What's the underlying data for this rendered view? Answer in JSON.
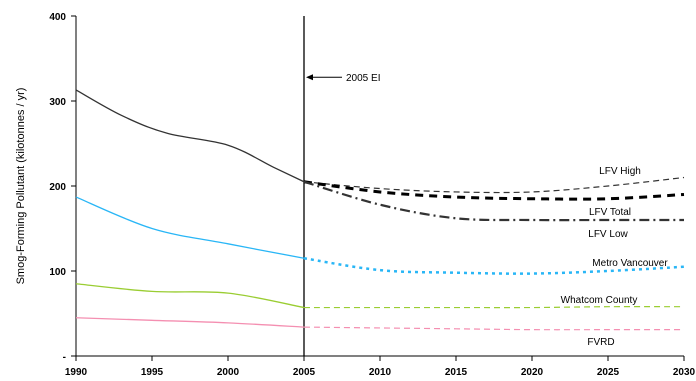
{
  "chart_data": {
    "type": "line",
    "ylabel": "Smog-Forming Pollutant (kilotonnes / yr)",
    "xlabel": "",
    "xlim": [
      1990,
      2030
    ],
    "ylim": [
      0,
      400
    ],
    "xticks": [
      "1990",
      "1995",
      "2000",
      "2005",
      "2010",
      "2015",
      "2020",
      "2025",
      "2030"
    ],
    "yticks": [
      "-",
      "100",
      "200",
      "300",
      "400"
    ],
    "grid": false,
    "annotation": {
      "text": "2005 EI",
      "x": 2005
    },
    "series": [
      {
        "name": "",
        "color": "#333333",
        "style": "solid",
        "x": [
          1990,
          1993,
          1996,
          2000,
          2003,
          2005
        ],
        "y": [
          313,
          283,
          262,
          248,
          222,
          205
        ]
      },
      {
        "name": "LFV High",
        "color": "#333333",
        "style": "dashed",
        "x": [
          2005,
          2010,
          2015,
          2020,
          2025,
          2030
        ],
        "y": [
          205,
          197,
          193,
          193,
          200,
          210
        ]
      },
      {
        "name": "LFV Total",
        "color": "#000000",
        "style": "dash-heavy",
        "x": [
          2005,
          2010,
          2015,
          2020,
          2025,
          2030
        ],
        "y": [
          205,
          193,
          187,
          185,
          185,
          190
        ]
      },
      {
        "name": "LFV Low",
        "color": "#333333",
        "style": "dashdot",
        "x": [
          2005,
          2010,
          2015,
          2020,
          2025,
          2030
        ],
        "y": [
          205,
          178,
          162,
          160,
          160,
          160
        ]
      },
      {
        "name": "",
        "color": "#29b6f6",
        "style": "solid",
        "x": [
          1990,
          1995,
          2000,
          2005
        ],
        "y": [
          187,
          150,
          132,
          115
        ]
      },
      {
        "name": "Metro Vancouver",
        "color": "#29b6f6",
        "style": "dotted",
        "x": [
          2005,
          2010,
          2015,
          2020,
          2025,
          2030
        ],
        "y": [
          115,
          101,
          98,
          97,
          100,
          105
        ]
      },
      {
        "name": "",
        "color": "#9acd32",
        "style": "solid",
        "x": [
          1990,
          1995,
          2000,
          2005
        ],
        "y": [
          85,
          76,
          74,
          57
        ]
      },
      {
        "name": "Whatcom County",
        "color": "#9acd32",
        "style": "dashed",
        "x": [
          2005,
          2010,
          2015,
          2020,
          2025,
          2030
        ],
        "y": [
          57,
          57,
          57,
          57,
          58,
          58
        ]
      },
      {
        "name": "",
        "color": "#f48fb1",
        "style": "solid",
        "x": [
          1990,
          1995,
          2000,
          2005
        ],
        "y": [
          45,
          42,
          39,
          34
        ]
      },
      {
        "name": "FVRD",
        "color": "#f48fb1",
        "style": "dashed",
        "x": [
          2005,
          2010,
          2015,
          2020,
          2025,
          2030
        ],
        "y": [
          34,
          33,
          32,
          31,
          31,
          31
        ]
      }
    ],
    "labels": [
      {
        "text": "LFV High",
        "series": 1
      },
      {
        "text": "LFV Total",
        "series": 2
      },
      {
        "text": "LFV Low",
        "series": 3
      },
      {
        "text": "Metro Vancouver",
        "series": 5
      },
      {
        "text": "Whatcom County",
        "series": 7
      },
      {
        "text": "FVRD",
        "series": 9
      }
    ]
  }
}
